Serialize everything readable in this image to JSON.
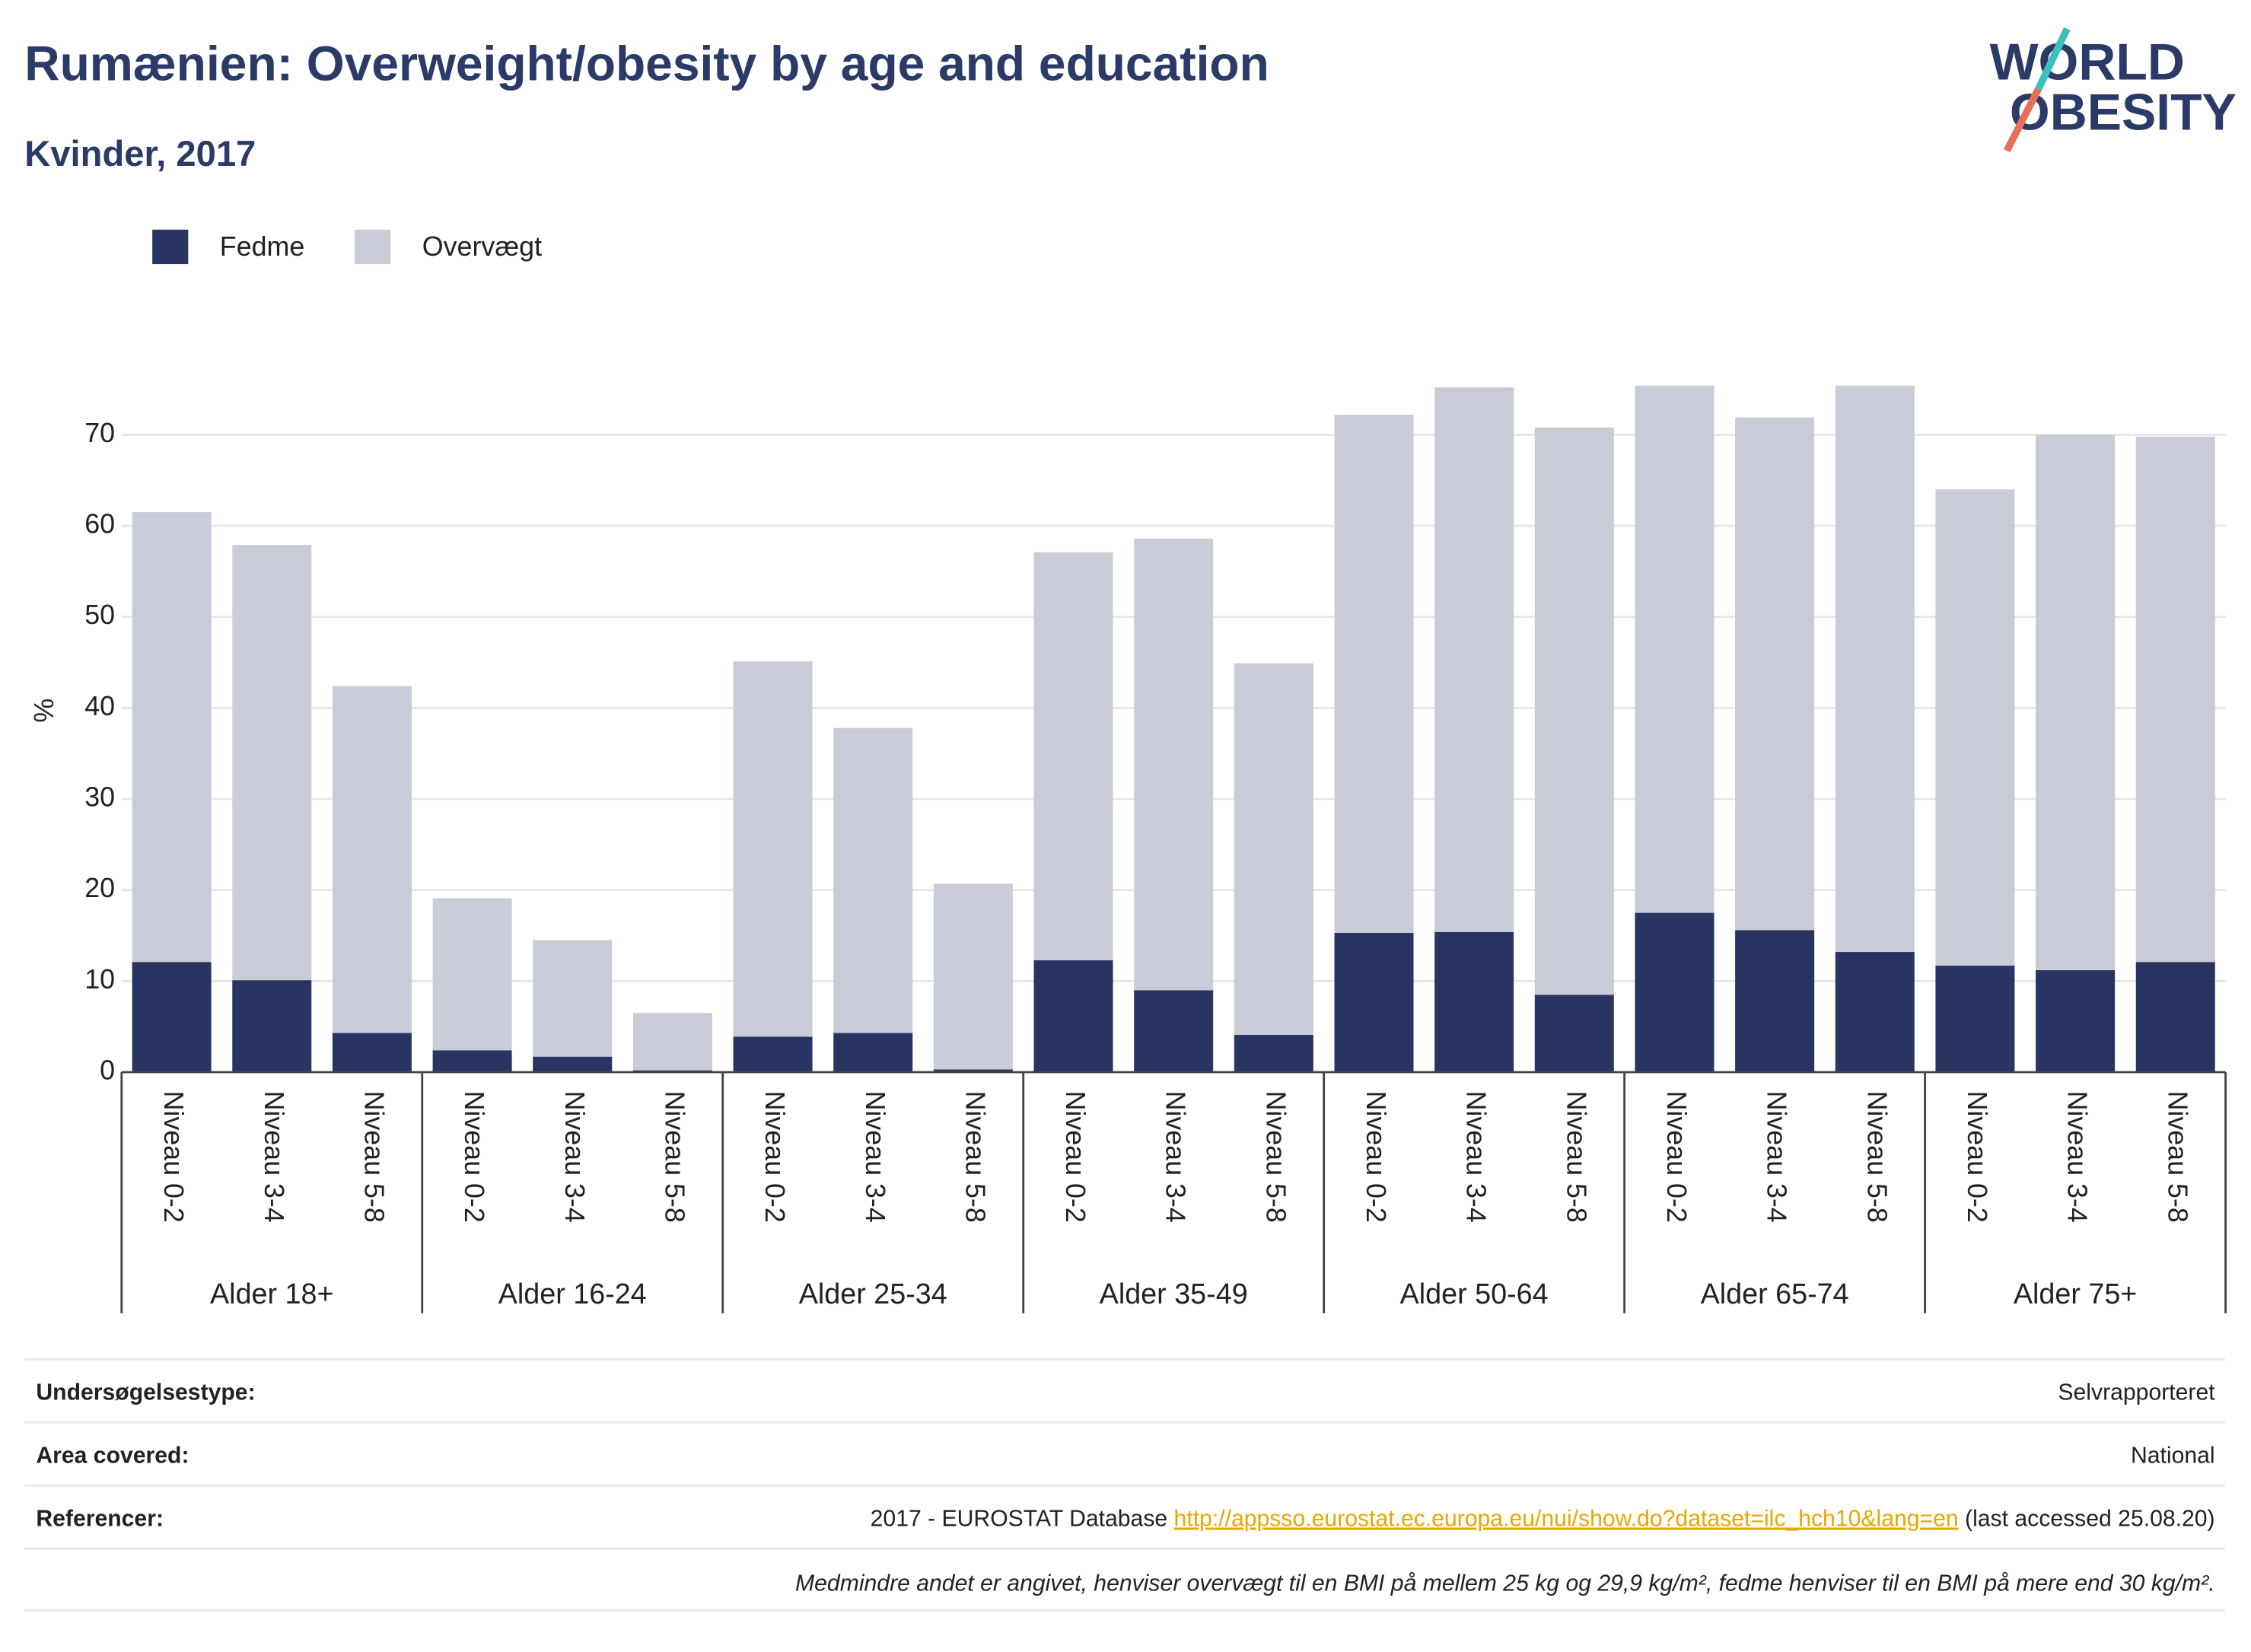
{
  "chart_data": {
    "type": "bar",
    "stacked": true,
    "title": "Rumænien: Overweight/obesity by age and education",
    "subtitle": "Kvinder, 2017",
    "y_label": "%",
    "categories": [
      "Niveau 0-2",
      "Niveau 3-4",
      "Niveau 5-8",
      "Niveau 0-2",
      "Niveau 3-4",
      "Niveau 5-8",
      "Niveau 0-2",
      "Niveau 3-4",
      "Niveau 5-8",
      "Niveau 0-2",
      "Niveau 3-4",
      "Niveau 5-8",
      "Niveau 0-2",
      "Niveau 3-4",
      "Niveau 5-8",
      "Niveau 0-2",
      "Niveau 3-4",
      "Niveau 5-8",
      "Niveau 0-2",
      "Niveau 3-4",
      "Niveau 5-8"
    ],
    "groups": [
      "Alder 18+",
      "Alder 16-24",
      "Alder 25-34",
      "Alder 35-49",
      "Alder 50-64",
      "Alder 65-74",
      "Alder 75+"
    ],
    "series": [
      {
        "name": "Fedme",
        "color": "#2a3462",
        "values": [
          12.1,
          10.1,
          4.3,
          2.4,
          1.7,
          0.2,
          3.9,
          4.3,
          0.3,
          12.3,
          9.0,
          4.1,
          15.3,
          15.4,
          8.5,
          17.5,
          15.6,
          13.2,
          11.7,
          11.2,
          12.1
        ]
      },
      {
        "name": "Overvægt",
        "color": "#c9cbd7",
        "values": [
          49.4,
          47.8,
          38.1,
          16.7,
          12.8,
          6.3,
          41.2,
          33.5,
          20.4,
          44.8,
          49.6,
          40.8,
          56.9,
          59.8,
          62.3,
          57.9,
          56.3,
          62.2,
          52.3,
          58.8,
          57.7
        ]
      }
    ],
    "ylim": [
      0,
      80
    ],
    "yticks": [
      0,
      10,
      20,
      30,
      40,
      50,
      60,
      70
    ],
    "grid": true,
    "legend": "top-left"
  },
  "logo": {
    "line1": "WORLD",
    "line2": "OBESITY"
  },
  "info": {
    "rows": [
      {
        "label": "Undersøgelsestype:",
        "value": "Selvrapporteret"
      },
      {
        "label": "Area covered:",
        "value": "National"
      }
    ],
    "references": {
      "label": "Referencer:",
      "text": "2017 - EUROSTAT Database ",
      "link": "http://appsso.eurostat.ec.europa.eu/nui/show.do?dataset=ilc_hch10&lang=en",
      "suffix": " (last accessed 25.08.20)"
    },
    "footnote": "Medmindre andet er angivet, henviser overvægt til en BMI på mellem 25 kg og 29,9 kg/m², fedme henviser til en BMI på mere end 30 kg/m²."
  }
}
